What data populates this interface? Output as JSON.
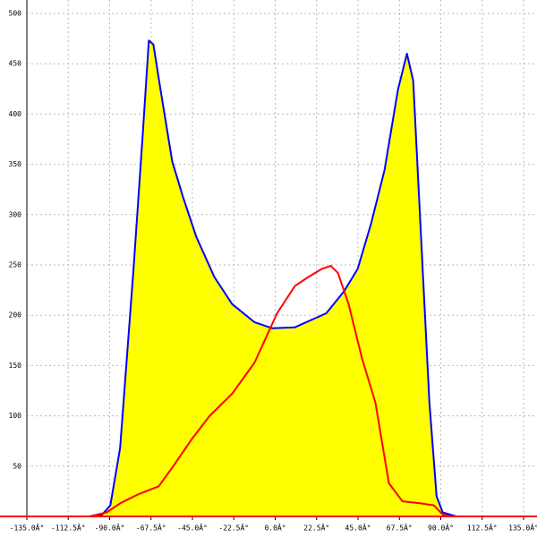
{
  "chart_data": {
    "type": "line",
    "xlim": [
      -135,
      135
    ],
    "ylim": [
      0,
      500
    ],
    "xticks": [
      {
        "value": -135,
        "label": "-135.0Â°"
      },
      {
        "value": -112.5,
        "label": "-112.5Â°"
      },
      {
        "value": -90,
        "label": "-90.0Â°"
      },
      {
        "value": -67.5,
        "label": "-67.5Â°"
      },
      {
        "value": -45,
        "label": "-45.0Â°"
      },
      {
        "value": -22.5,
        "label": "-22.5Â°"
      },
      {
        "value": 0,
        "label": "0.0Â°"
      },
      {
        "value": 22.5,
        "label": "22.5Â°"
      },
      {
        "value": 45,
        "label": "45.0Â°"
      },
      {
        "value": 67.5,
        "label": "67.5Â°"
      },
      {
        "value": 90,
        "label": "90.0Â°"
      },
      {
        "value": 112.5,
        "label": "112.5Â°"
      },
      {
        "value": 135,
        "label": "135.0Â°"
      }
    ],
    "yticks": [
      50,
      100,
      150,
      200,
      250,
      300,
      350,
      400,
      450,
      500
    ],
    "grid": true,
    "series": [
      {
        "color": "#0000ff",
        "fill": "#ffff00",
        "x": [
          -99,
          -94,
          -89.6,
          -84.3,
          -77,
          -72,
          -68.7,
          -66.2,
          -62.3,
          -56,
          -50.2,
          -42.9,
          -33.1,
          -23.4,
          -11.2,
          -1.5,
          10.7,
          27.8,
          37.5,
          44.8,
          52.1,
          59.4,
          66.7,
          71.6,
          75,
          78.9,
          83.8,
          87.7,
          91,
          98.4
        ],
        "values": [
          0,
          2,
          11,
          68,
          246,
          380,
          473,
          469,
          424,
          353,
          318,
          278,
          238,
          211,
          193,
          187,
          188,
          202,
          224,
          246,
          291,
          344,
          424,
          460,
          433,
          291,
          113,
          20,
          4,
          0
        ]
      },
      {
        "color": "#ff0000",
        "x": [
          -101,
          -91.6,
          -84.3,
          -74.5,
          -63.3,
          -55,
          -45.3,
          -35.6,
          -23.4,
          -11.2,
          1,
          10.7,
          18,
          25.3,
          30.2,
          34.1,
          39.9,
          47.2,
          54.5,
          61.8,
          69.2,
          78.9,
          86.2,
          91,
          96
        ],
        "values": [
          0,
          4,
          13,
          22,
          30,
          51,
          77,
          100,
          122,
          153,
          202,
          229,
          238,
          246,
          249,
          242,
          211,
          157,
          113,
          33,
          15,
          13,
          11,
          2,
          0
        ]
      }
    ]
  }
}
